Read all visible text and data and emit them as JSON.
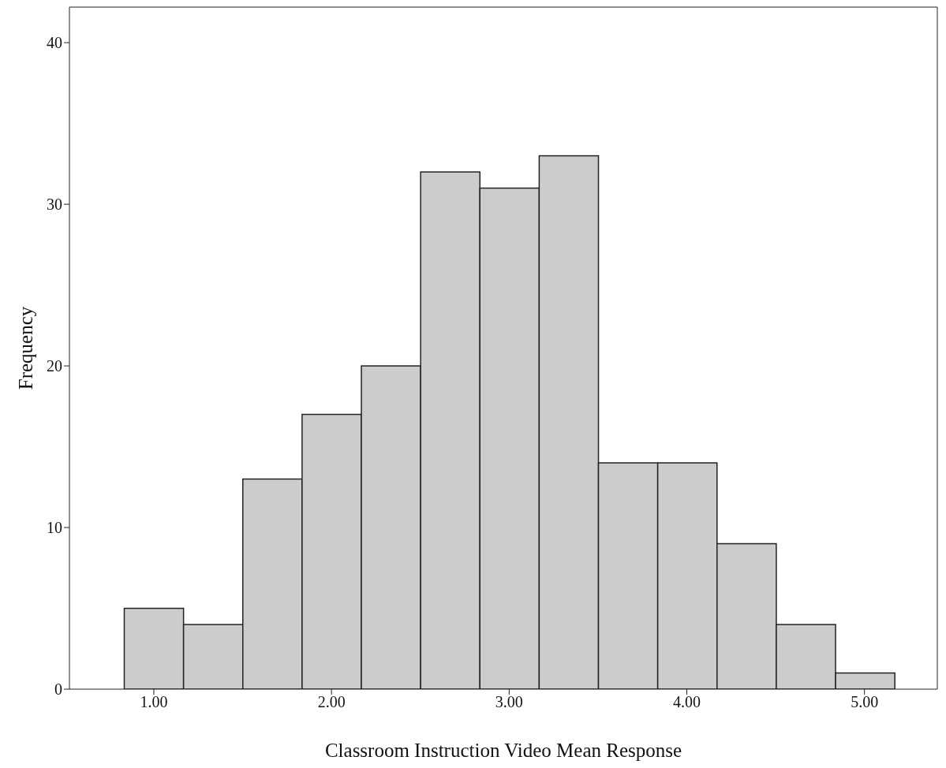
{
  "chart_data": {
    "type": "histogram",
    "xlabel": "Classroom Instruction Video Mean Response",
    "ylabel": "Frequency",
    "bins": [
      0.8333,
      1.1667,
      1.5,
      1.8333,
      2.1667,
      2.5,
      2.8333,
      3.1667,
      3.5,
      3.8333,
      4.1667,
      4.5,
      4.8333,
      5.1667
    ],
    "values": [
      5,
      4,
      13,
      17,
      20,
      32,
      31,
      33,
      14,
      14,
      9,
      4,
      1
    ],
    "color": "#cccccc",
    "xlim": [
      0.525,
      5.41
    ],
    "xticks": [
      {
        "value": 1,
        "label": "1.00"
      },
      {
        "value": 2,
        "label": "2.00"
      },
      {
        "value": 3,
        "label": "3.00"
      },
      {
        "value": 4,
        "label": "4.00"
      },
      {
        "value": 5,
        "label": "5.00"
      }
    ],
    "ylim": [
      0,
      42.2
    ],
    "yticks": [
      0,
      10,
      20,
      30,
      40
    ]
  }
}
